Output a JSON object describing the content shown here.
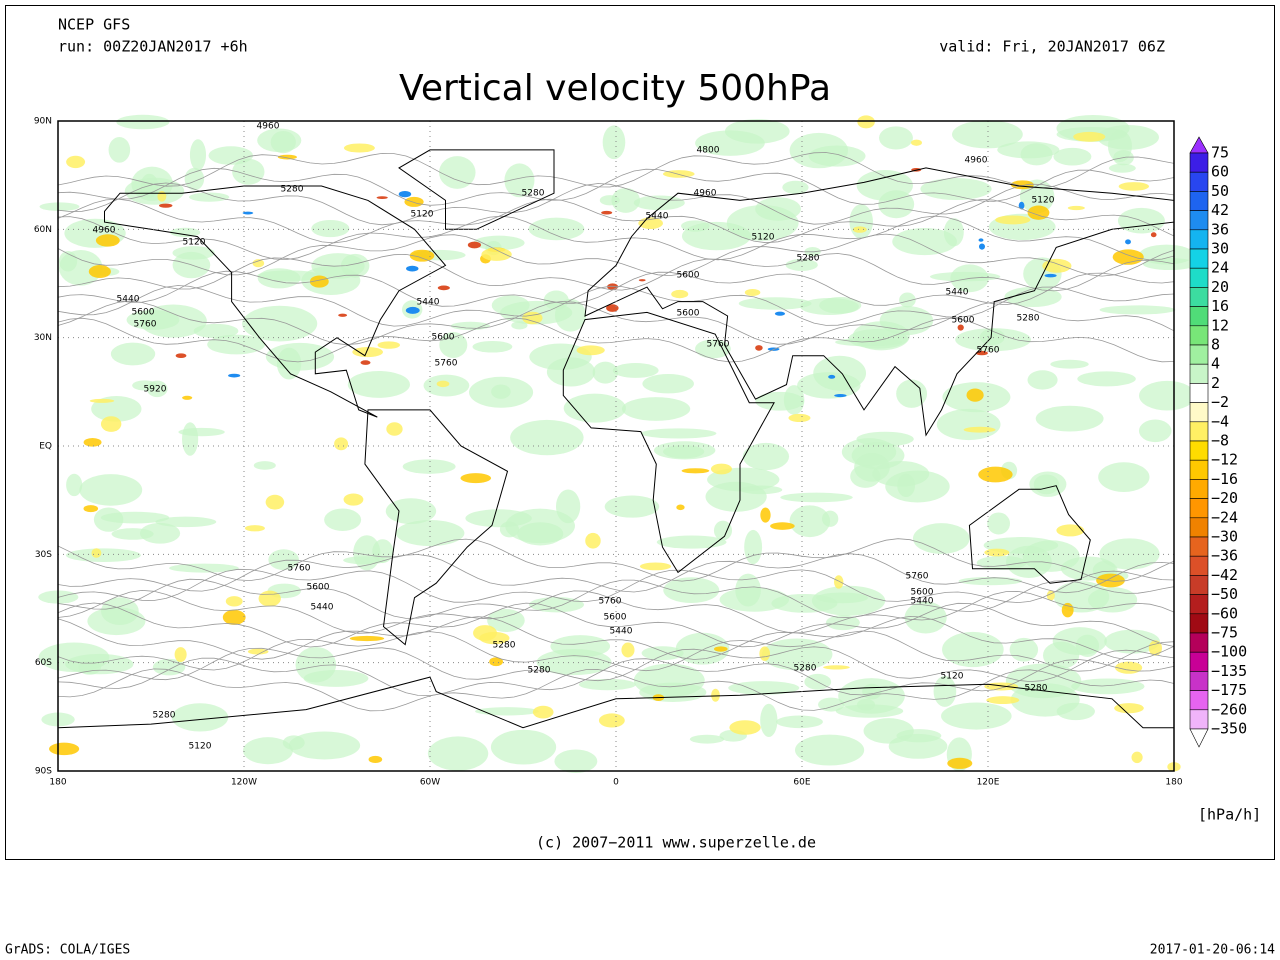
{
  "header": {
    "model": "NCEP GFS",
    "run": "run: 00Z20JAN2017 +6h",
    "valid": "valid: Fri, 20JAN2017 06Z",
    "title": "Vertical velocity 500hPa"
  },
  "map": {
    "lat_labels": [
      "90N",
      "60N",
      "30N",
      "EQ",
      "30S",
      "60S",
      "90S"
    ],
    "lon_labels": [
      "180",
      "120W",
      "60W",
      "0",
      "60E",
      "120E",
      "180"
    ],
    "contour_labels": [
      "4960",
      "4800",
      "4960",
      "5280",
      "5280",
      "4960",
      "5120",
      "5440",
      "5120",
      "4960",
      "5120",
      "5120",
      "5280",
      "5600",
      "5440",
      "5600",
      "5760",
      "5440",
      "5440",
      "5600",
      "5600",
      "5280",
      "5600",
      "5760",
      "5760",
      "5760",
      "5920",
      "5760",
      "5600",
      "5440",
      "5760",
      "5600",
      "5440",
      "5760",
      "5600",
      "5440",
      "5280",
      "5280",
      "5280",
      "5120",
      "5280",
      "5280",
      "5120"
    ]
  },
  "colorbar": {
    "labels": [
      "75",
      "60",
      "50",
      "42",
      "36",
      "30",
      "24",
      "20",
      "16",
      "12",
      "8",
      "4",
      "2",
      "−2",
      "−4",
      "−8",
      "−12",
      "−16",
      "−20",
      "−24",
      "−30",
      "−36",
      "−42",
      "−50",
      "−60",
      "−75",
      "−100",
      "−135",
      "−175",
      "−260",
      "−350"
    ],
    "colors": [
      "#9b30ff",
      "#3c1ee6",
      "#2846f0",
      "#1e64f0",
      "#1e8cf0",
      "#14b4f0",
      "#14d2e6",
      "#1edcc8",
      "#3cdca0",
      "#50dc78",
      "#78e678",
      "#a0f0a0",
      "#c8f5c8",
      "#ffffff",
      "#fffac8",
      "#fff064",
      "#ffdc00",
      "#ffc800",
      "#ffaa00",
      "#ff9600",
      "#f08200",
      "#e6641e",
      "#dc5028",
      "#c83c28",
      "#b41e1e",
      "#a00a14",
      "#b4005a",
      "#c80096",
      "#c832c8",
      "#e664f0",
      "#f0b4fa",
      "#ffffff"
    ],
    "unit": "[hPa/h]"
  },
  "footer": {
    "copyright": "(c) 2007−2011 www.superzelle.de",
    "software": "GrADS: COLA/IGES",
    "timestamp": "2017-01-20-06:14"
  }
}
